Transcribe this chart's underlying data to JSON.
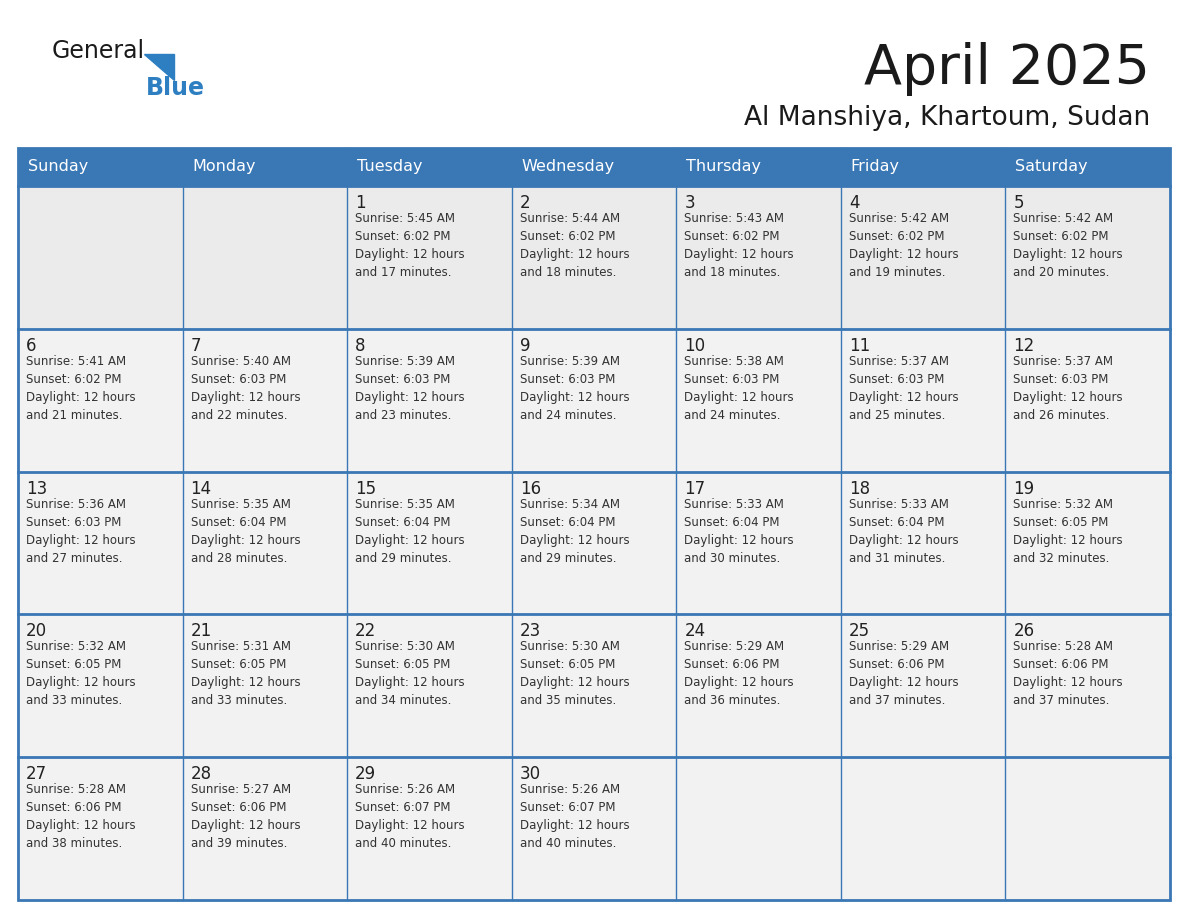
{
  "title": "April 2025",
  "subtitle": "Al Manshiya, Khartoum, Sudan",
  "header_bg_color": "#3a77b5",
  "header_text_color": "#ffffff",
  "day_names": [
    "Sunday",
    "Monday",
    "Tuesday",
    "Wednesday",
    "Thursday",
    "Friday",
    "Saturday"
  ],
  "grid_line_color": "#3a77b5",
  "title_color": "#1a1a1a",
  "subtitle_color": "#1a1a1a",
  "number_color": "#222222",
  "text_color": "#333333",
  "logo_general_color": "#1a1a1a",
  "logo_blue_color": "#2e7fc1",
  "cell_bg_row0": "#ebebeb",
  "cell_bg_other": "#f5f5f5",
  "cell_bg_white": "#ffffff",
  "weeks": [
    [
      {
        "day": 0,
        "text": ""
      },
      {
        "day": 0,
        "text": ""
      },
      {
        "day": 1,
        "text": "Sunrise: 5:45 AM\nSunset: 6:02 PM\nDaylight: 12 hours\nand 17 minutes."
      },
      {
        "day": 2,
        "text": "Sunrise: 5:44 AM\nSunset: 6:02 PM\nDaylight: 12 hours\nand 18 minutes."
      },
      {
        "day": 3,
        "text": "Sunrise: 5:43 AM\nSunset: 6:02 PM\nDaylight: 12 hours\nand 18 minutes."
      },
      {
        "day": 4,
        "text": "Sunrise: 5:42 AM\nSunset: 6:02 PM\nDaylight: 12 hours\nand 19 minutes."
      },
      {
        "day": 5,
        "text": "Sunrise: 5:42 AM\nSunset: 6:02 PM\nDaylight: 12 hours\nand 20 minutes."
      }
    ],
    [
      {
        "day": 6,
        "text": "Sunrise: 5:41 AM\nSunset: 6:02 PM\nDaylight: 12 hours\nand 21 minutes."
      },
      {
        "day": 7,
        "text": "Sunrise: 5:40 AM\nSunset: 6:03 PM\nDaylight: 12 hours\nand 22 minutes."
      },
      {
        "day": 8,
        "text": "Sunrise: 5:39 AM\nSunset: 6:03 PM\nDaylight: 12 hours\nand 23 minutes."
      },
      {
        "day": 9,
        "text": "Sunrise: 5:39 AM\nSunset: 6:03 PM\nDaylight: 12 hours\nand 24 minutes."
      },
      {
        "day": 10,
        "text": "Sunrise: 5:38 AM\nSunset: 6:03 PM\nDaylight: 12 hours\nand 24 minutes."
      },
      {
        "day": 11,
        "text": "Sunrise: 5:37 AM\nSunset: 6:03 PM\nDaylight: 12 hours\nand 25 minutes."
      },
      {
        "day": 12,
        "text": "Sunrise: 5:37 AM\nSunset: 6:03 PM\nDaylight: 12 hours\nand 26 minutes."
      }
    ],
    [
      {
        "day": 13,
        "text": "Sunrise: 5:36 AM\nSunset: 6:03 PM\nDaylight: 12 hours\nand 27 minutes."
      },
      {
        "day": 14,
        "text": "Sunrise: 5:35 AM\nSunset: 6:04 PM\nDaylight: 12 hours\nand 28 minutes."
      },
      {
        "day": 15,
        "text": "Sunrise: 5:35 AM\nSunset: 6:04 PM\nDaylight: 12 hours\nand 29 minutes."
      },
      {
        "day": 16,
        "text": "Sunrise: 5:34 AM\nSunset: 6:04 PM\nDaylight: 12 hours\nand 29 minutes."
      },
      {
        "day": 17,
        "text": "Sunrise: 5:33 AM\nSunset: 6:04 PM\nDaylight: 12 hours\nand 30 minutes."
      },
      {
        "day": 18,
        "text": "Sunrise: 5:33 AM\nSunset: 6:04 PM\nDaylight: 12 hours\nand 31 minutes."
      },
      {
        "day": 19,
        "text": "Sunrise: 5:32 AM\nSunset: 6:05 PM\nDaylight: 12 hours\nand 32 minutes."
      }
    ],
    [
      {
        "day": 20,
        "text": "Sunrise: 5:32 AM\nSunset: 6:05 PM\nDaylight: 12 hours\nand 33 minutes."
      },
      {
        "day": 21,
        "text": "Sunrise: 5:31 AM\nSunset: 6:05 PM\nDaylight: 12 hours\nand 33 minutes."
      },
      {
        "day": 22,
        "text": "Sunrise: 5:30 AM\nSunset: 6:05 PM\nDaylight: 12 hours\nand 34 minutes."
      },
      {
        "day": 23,
        "text": "Sunrise: 5:30 AM\nSunset: 6:05 PM\nDaylight: 12 hours\nand 35 minutes."
      },
      {
        "day": 24,
        "text": "Sunrise: 5:29 AM\nSunset: 6:06 PM\nDaylight: 12 hours\nand 36 minutes."
      },
      {
        "day": 25,
        "text": "Sunrise: 5:29 AM\nSunset: 6:06 PM\nDaylight: 12 hours\nand 37 minutes."
      },
      {
        "day": 26,
        "text": "Sunrise: 5:28 AM\nSunset: 6:06 PM\nDaylight: 12 hours\nand 37 minutes."
      }
    ],
    [
      {
        "day": 27,
        "text": "Sunrise: 5:28 AM\nSunset: 6:06 PM\nDaylight: 12 hours\nand 38 minutes."
      },
      {
        "day": 28,
        "text": "Sunrise: 5:27 AM\nSunset: 6:06 PM\nDaylight: 12 hours\nand 39 minutes."
      },
      {
        "day": 29,
        "text": "Sunrise: 5:26 AM\nSunset: 6:07 PM\nDaylight: 12 hours\nand 40 minutes."
      },
      {
        "day": 30,
        "text": "Sunrise: 5:26 AM\nSunset: 6:07 PM\nDaylight: 12 hours\nand 40 minutes."
      },
      {
        "day": 0,
        "text": ""
      },
      {
        "day": 0,
        "text": ""
      },
      {
        "day": 0,
        "text": ""
      }
    ]
  ]
}
